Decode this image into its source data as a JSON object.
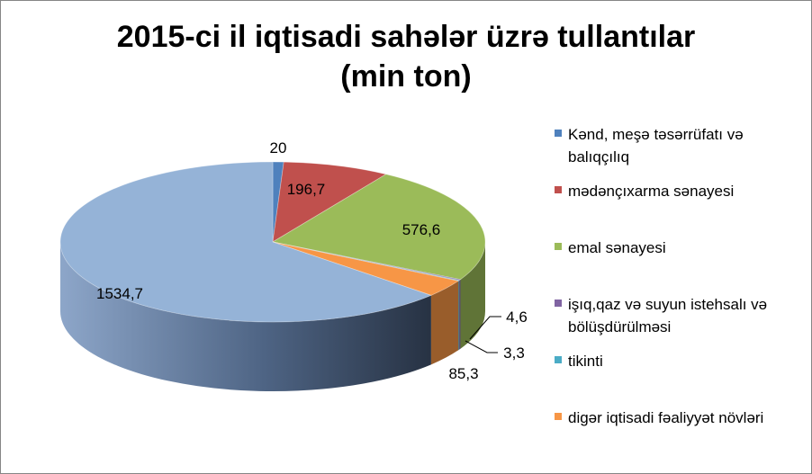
{
  "chart_data": {
    "type": "pie",
    "style": "3d",
    "title": "2015-ci il iqtisadi sahələr üzrə tullantılar",
    "subtitle": "(min ton)",
    "legend_position": "right",
    "slices": [
      {
        "label": "Kənd, meşə təsərrüfatı və balıqçılıq",
        "value": 20,
        "value_label": "20",
        "color": "#4f81bd"
      },
      {
        "label": "mədənçıxarma sənayesi",
        "value": 196.7,
        "value_label": "196,7",
        "color": "#c0504d"
      },
      {
        "label": "emal sənayesi",
        "value": 576.6,
        "value_label": "576,6",
        "color": "#9bbb59"
      },
      {
        "label": "işıq,qaz və suyun istehsalı və bölüşdürülməsi",
        "value": 4.6,
        "value_label": "4,6",
        "color": "#8064a2"
      },
      {
        "label": "tikinti",
        "value": 3.3,
        "value_label": "3,3",
        "color": "#4bacc6"
      },
      {
        "label": "digər iqtisadi fəaliyyət növləri",
        "value": 85.3,
        "value_label": "85,3",
        "color": "#f79646"
      },
      {
        "label": "",
        "value": 1534.7,
        "value_label": "1534,7",
        "color": "#95b3d7"
      }
    ]
  },
  "legend": {
    "items": [
      {
        "lines": [
          "Kənd, meşə təsərrüfatı və",
          "balıqçılıq"
        ],
        "color": "#4f81bd"
      },
      {
        "lines": [
          "mədənçıxarma sənayesi"
        ],
        "color": "#c0504d"
      },
      {
        "lines": [
          "emal sənayesi"
        ],
        "color": "#9bbb59"
      },
      {
        "lines": [
          "işıq,qaz və suyun istehsalı və",
          "bölüşdürülməsi"
        ],
        "color": "#8064a2"
      },
      {
        "lines": [
          "tikinti"
        ],
        "color": "#4bacc6"
      },
      {
        "lines": [
          "digər iqtisadi fəaliyyət növləri"
        ],
        "color": "#f79646"
      }
    ]
  }
}
